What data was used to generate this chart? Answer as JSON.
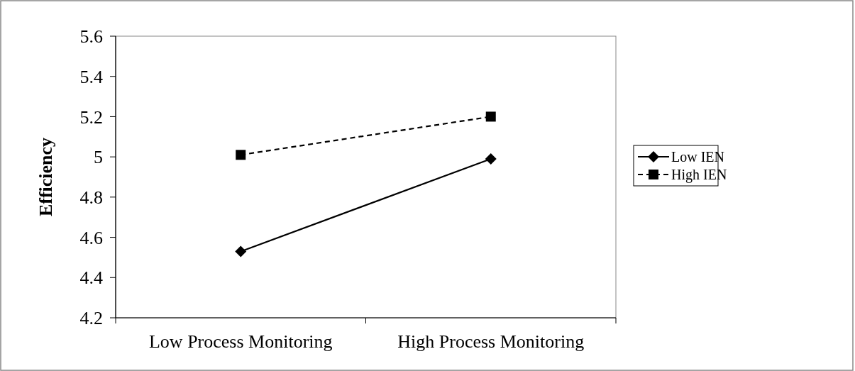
{
  "chart_data": {
    "type": "line",
    "ylabel": "Efficiency",
    "categories": [
      "Low Process Monitoring",
      "High Process Monitoring"
    ],
    "series": [
      {
        "name": "Low IEN",
        "color": "#000000",
        "values": [
          4.53,
          4.99
        ],
        "marker": "diamond",
        "line_style": "solid"
      },
      {
        "name": "High IEN",
        "color": "#000000",
        "values": [
          5.01,
          5.2
        ],
        "marker": "square",
        "line_style": "dashed"
      }
    ],
    "ylim": [
      4.2,
      5.6
    ],
    "yticks": [
      4.2,
      4.4,
      4.6,
      4.8,
      5,
      5.2,
      5.4,
      5.6
    ],
    "grid": false,
    "legend": "right"
  }
}
